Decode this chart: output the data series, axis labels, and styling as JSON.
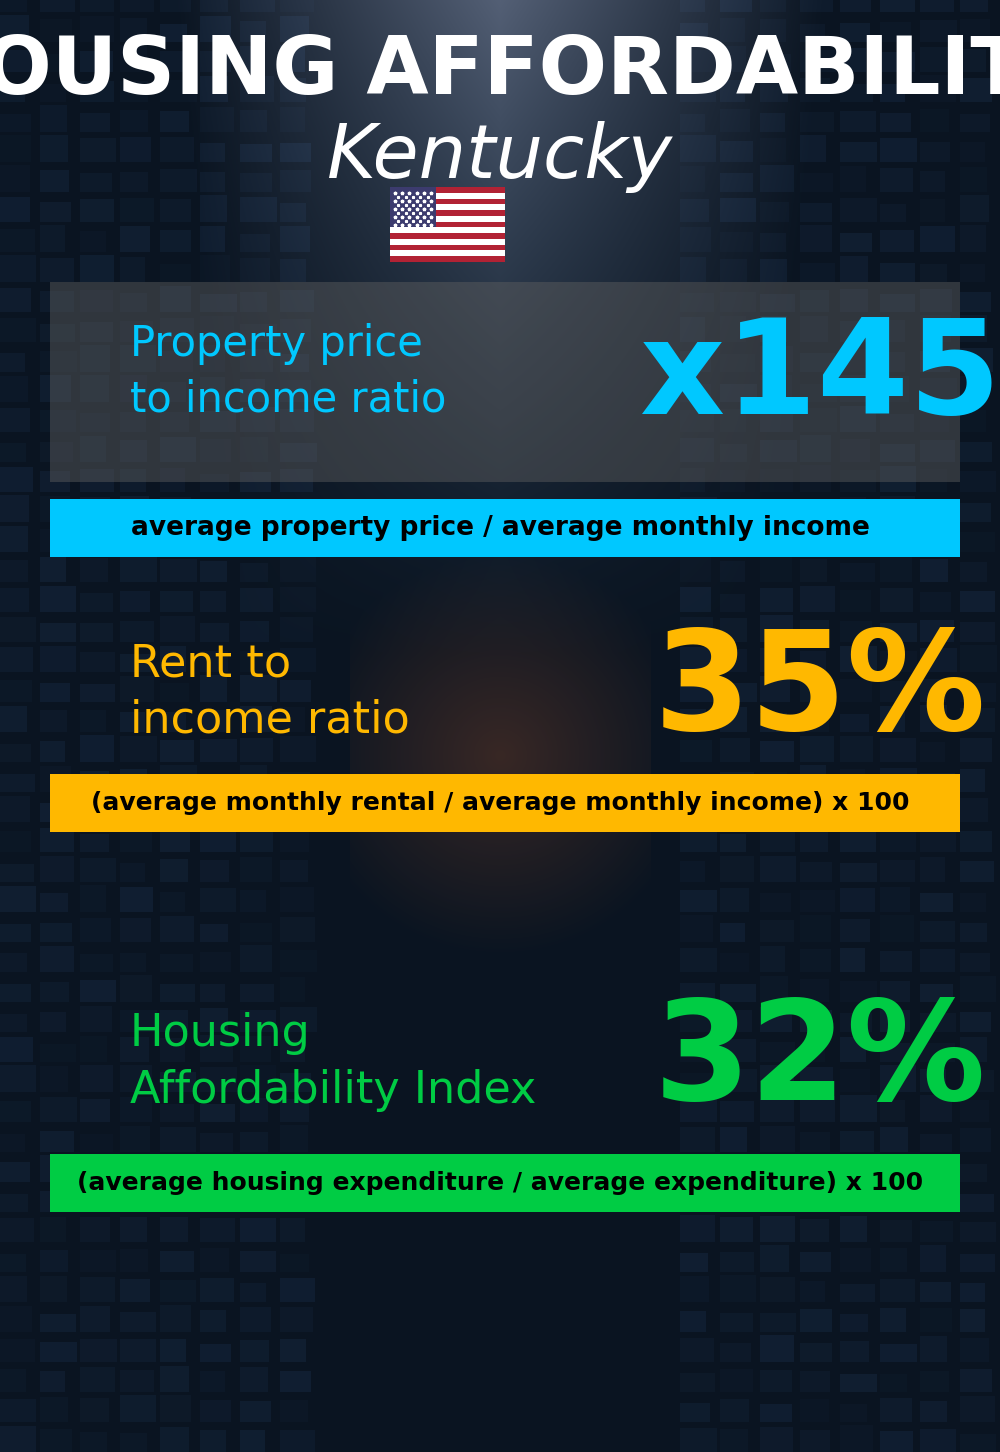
{
  "title_line1": "HOUSING AFFORDABILITY",
  "title_line2": "Kentucky",
  "flag_emoji": "🇺🇸",
  "section1_label": "Property price\nto income ratio",
  "section1_value": "x145",
  "section1_label_color": "#00c8ff",
  "section1_value_color": "#00c8ff",
  "section1_formula": "average property price / average monthly income",
  "section1_formula_bg": "#00c8ff",
  "section1_formula_text_color": "#000000",
  "section1_bg_color": "#555555",
  "section1_bg_alpha": 0.45,
  "section2_label": "Rent to\nincome ratio",
  "section2_value": "35%",
  "section2_label_color": "#FFB800",
  "section2_value_color": "#FFB800",
  "section2_formula": "(average monthly rental / average monthly income) x 100",
  "section2_formula_bg": "#FFB800",
  "section2_formula_text_color": "#000000",
  "section3_label": "Housing\nAffordability Index",
  "section3_value": "32%",
  "section3_label_color": "#00cc44",
  "section3_value_color": "#00cc44",
  "section3_formula": "(average housing expenditure / average expenditure) x 100",
  "section3_formula_bg": "#00cc44",
  "section3_formula_text_color": "#000000",
  "bg_color": "#0a1520",
  "title_color": "#ffffff",
  "subtitle_color": "#ffffff"
}
